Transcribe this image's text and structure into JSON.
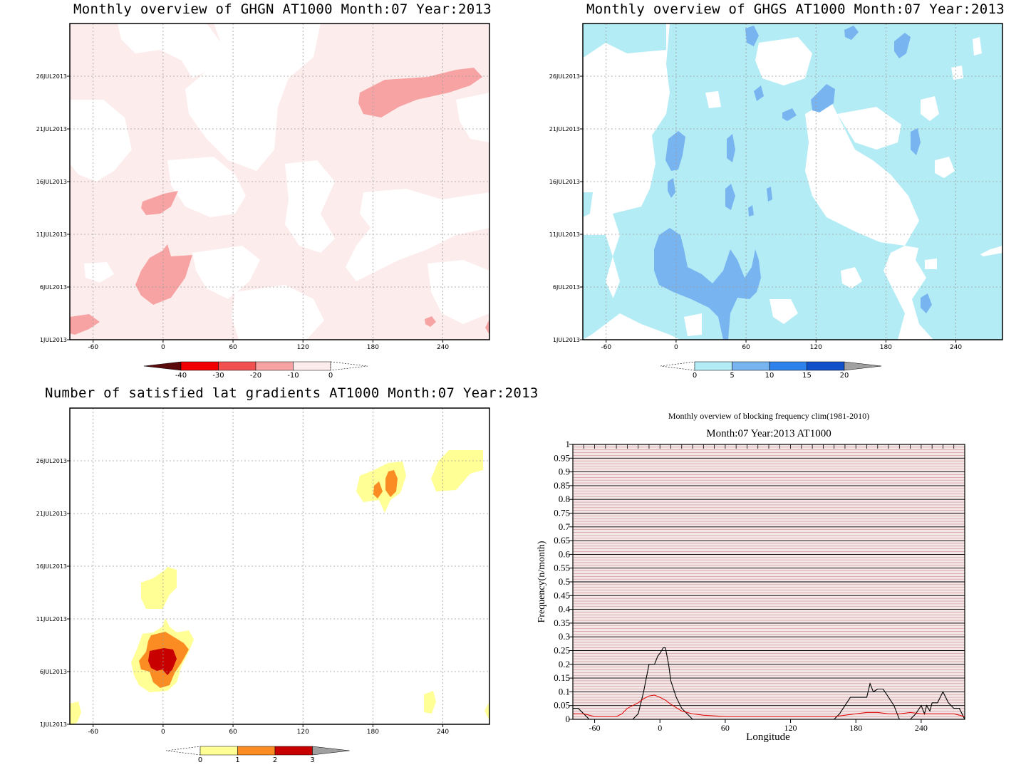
{
  "chart_data": [
    {
      "type": "heatmap",
      "title": "Monthly overview of GHGN AT1000 Month:07 Year:2013",
      "xticks": [
        "-60",
        "0",
        "60",
        "120",
        "180",
        "240"
      ],
      "xtick_values": [
        -60,
        0,
        60,
        120,
        180,
        240
      ],
      "xlim": [
        -80,
        280
      ],
      "yticks": [
        "1JUL2013",
        "6JUL2013",
        "11JUL2013",
        "16JUL2013",
        "21JUL2013",
        "26JUL2013"
      ],
      "ytick_values": [
        1,
        6,
        11,
        16,
        21,
        26
      ],
      "ylim": [
        1,
        31
      ],
      "colorbar": {
        "labels": [
          "-40",
          "-30",
          "-20",
          "-10",
          "0"
        ],
        "levels": [
          -40,
          -30,
          -20,
          -10,
          0
        ],
        "colors": [
          "#5a0a0a",
          "#f00000",
          "#f05050",
          "#f7a3a3",
          "#fdecec"
        ]
      }
    },
    {
      "type": "heatmap",
      "title": "Monthly overview of GHGS AT1000 Month:07 Year:2013",
      "xticks": [
        "-60",
        "0",
        "60",
        "120",
        "180",
        "240"
      ],
      "xtick_values": [
        -60,
        0,
        60,
        120,
        180,
        240
      ],
      "xlim": [
        -80,
        280
      ],
      "yticks": [
        "1JUL2013",
        "6JUL2013",
        "11JUL2013",
        "16JUL2013",
        "21JUL2013",
        "26JUL2013"
      ],
      "ytick_values": [
        1,
        6,
        11,
        16,
        21,
        26
      ],
      "ylim": [
        1,
        31
      ],
      "colorbar": {
        "labels": [
          "0",
          "5",
          "10",
          "15",
          "20"
        ],
        "levels": [
          0,
          5,
          10,
          15,
          20
        ],
        "colors": [
          "#b4ecf5",
          "#78b4f0",
          "#2d82eb",
          "#1050c8",
          "#a0a0a0"
        ]
      }
    },
    {
      "type": "heatmap",
      "title": "Number of satisfied lat gradients AT1000 Month:07 Year:2013",
      "xticks": [
        "-60",
        "0",
        "60",
        "120",
        "180",
        "240"
      ],
      "xtick_values": [
        -60,
        0,
        60,
        120,
        180,
        240
      ],
      "xlim": [
        -80,
        280
      ],
      "yticks": [
        "1JUL2013",
        "6JUL2013",
        "11JUL2013",
        "16JUL2013",
        "21JUL2013",
        "26JUL2013"
      ],
      "ytick_values": [
        1,
        6,
        11,
        16,
        21,
        26
      ],
      "ylim": [
        1,
        31
      ],
      "colorbar": {
        "labels": [
          "0",
          "1",
          "2",
          "3"
        ],
        "levels": [
          0,
          1,
          2,
          3
        ],
        "colors": [
          "#ffff96",
          "#fa8c23",
          "#c80000",
          "#a0a0a0"
        ]
      }
    },
    {
      "type": "line",
      "title": "Monthly overview of blocking frequency clim(1981-2010)",
      "subtitle": "Month:07 Year:2013  AT1000",
      "xlabel": "Longitude",
      "ylabel": "Frequency(n/month)",
      "xlim": [
        -80,
        280
      ],
      "ylim": [
        0,
        1
      ],
      "xticks": [
        "-60",
        "0",
        "60",
        "120",
        "180",
        "240"
      ],
      "xtick_values": [
        -60,
        0,
        60,
        120,
        180,
        240
      ],
      "yticks": [
        "0",
        "0.05",
        "0.1",
        "0.15",
        "0.2",
        "0.25",
        "0.3",
        "0.35",
        "0.4",
        "0.45",
        "0.5",
        "0.55",
        "0.6",
        "0.65",
        "0.7",
        "0.75",
        "0.8",
        "0.85",
        "0.9",
        "0.95",
        "1"
      ],
      "ytick_values": [
        0,
        0.05,
        0.1,
        0.15,
        0.2,
        0.25,
        0.3,
        0.35,
        0.4,
        0.45,
        0.5,
        0.55,
        0.6,
        0.65,
        0.7,
        0.75,
        0.8,
        0.85,
        0.9,
        0.95,
        1
      ],
      "series": [
        {
          "color": "#000000",
          "x": [
            -80,
            -75,
            -70,
            -65,
            -60,
            -55,
            -50,
            -45,
            -40,
            -35,
            -30,
            -25,
            -20,
            -15,
            -10,
            -5,
            -2,
            0,
            3,
            5,
            8,
            10,
            15,
            20,
            25,
            30,
            35,
            40,
            50,
            60,
            80,
            100,
            120,
            140,
            160,
            165,
            170,
            175,
            180,
            185,
            190,
            193,
            196,
            200,
            205,
            210,
            215,
            220,
            225,
            230,
            235,
            240,
            243,
            245,
            248,
            250,
            255,
            260,
            265,
            270,
            275,
            280
          ],
          "y": [
            0.04,
            0.04,
            0.02,
            0.0,
            0.0,
            0.0,
            0.0,
            0.0,
            0.0,
            0.0,
            0.0,
            0.0,
            0.02,
            0.1,
            0.2,
            0.2,
            0.23,
            0.24,
            0.26,
            0.26,
            0.2,
            0.14,
            0.08,
            0.04,
            0.02,
            0.0,
            0.0,
            0.0,
            0.0,
            0.0,
            0.0,
            0.0,
            0.0,
            0.0,
            0.0,
            0.02,
            0.05,
            0.08,
            0.08,
            0.08,
            0.08,
            0.13,
            0.1,
            0.11,
            0.11,
            0.08,
            0.05,
            0.0,
            0.0,
            0.0,
            0.02,
            0.05,
            0.02,
            0.05,
            0.03,
            0.06,
            0.06,
            0.1,
            0.06,
            0.04,
            0.04,
            0.0
          ]
        },
        {
          "color": "#e00000",
          "x": [
            -80,
            -70,
            -60,
            -50,
            -40,
            -35,
            -30,
            -25,
            -20,
            -15,
            -10,
            -5,
            0,
            5,
            10,
            20,
            30,
            40,
            60,
            80,
            100,
            120,
            140,
            160,
            170,
            180,
            190,
            200,
            210,
            220,
            230,
            240,
            250,
            260,
            270,
            280
          ],
          "y": [
            0.02,
            0.02,
            0.01,
            0.01,
            0.01,
            0.02,
            0.04,
            0.05,
            0.06,
            0.075,
            0.085,
            0.088,
            0.08,
            0.07,
            0.055,
            0.03,
            0.02,
            0.015,
            0.01,
            0.01,
            0.01,
            0.01,
            0.01,
            0.01,
            0.015,
            0.02,
            0.025,
            0.025,
            0.02,
            0.02,
            0.025,
            0.02,
            0.02,
            0.02,
            0.02,
            0.01
          ]
        }
      ]
    }
  ]
}
